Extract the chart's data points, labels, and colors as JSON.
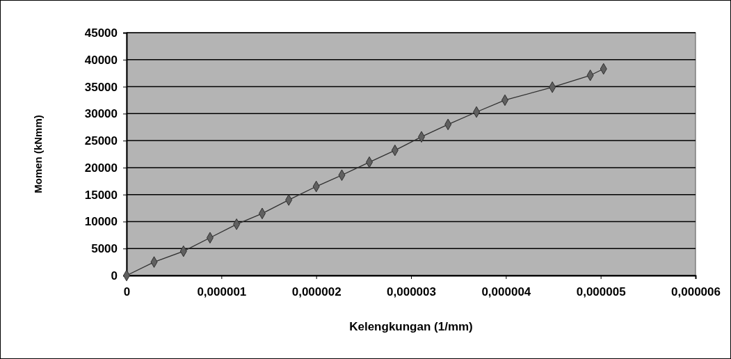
{
  "chart_data": {
    "type": "line",
    "xlabel": "Kelengkungan (1/mm)",
    "ylabel": "Momen (kNmm)",
    "x": [
      0,
      2.9e-07,
      6e-07,
      8.8e-07,
      1.16e-06,
      1.43e-06,
      1.71e-06,
      2e-06,
      2.27e-06,
      2.56e-06,
      2.83e-06,
      3.11e-06,
      3.39e-06,
      3.69e-06,
      3.99e-06,
      4.49e-06,
      4.89e-06,
      5.03e-06
    ],
    "series": [
      {
        "color": "#303030",
        "values": [
          0,
          2500,
          4500,
          7000,
          9500,
          11500,
          14000,
          16500,
          18600,
          21000,
          23200,
          25700,
          28000,
          30300,
          32500,
          34900,
          37100,
          38300
        ]
      }
    ],
    "xlim": [
      0,
      6e-06
    ],
    "xticks": [
      0,
      {
        "value": 1e-06,
        "label": "0,000001"
      },
      {
        "value": 2e-06,
        "label": "0,000002"
      },
      {
        "value": 3e-06,
        "label": "0,000003"
      },
      {
        "value": 4e-06,
        "label": "0,000004"
      },
      {
        "value": 5e-06,
        "label": "0,000005"
      },
      {
        "value": 6e-06,
        "label": "0,000006"
      }
    ],
    "ylim": [
      0,
      45000
    ],
    "yticks": [
      0,
      5000,
      10000,
      15000,
      20000,
      25000,
      30000,
      35000,
      40000,
      45000
    ],
    "grid": "y",
    "marker": "diamond",
    "line_style": "solid"
  }
}
